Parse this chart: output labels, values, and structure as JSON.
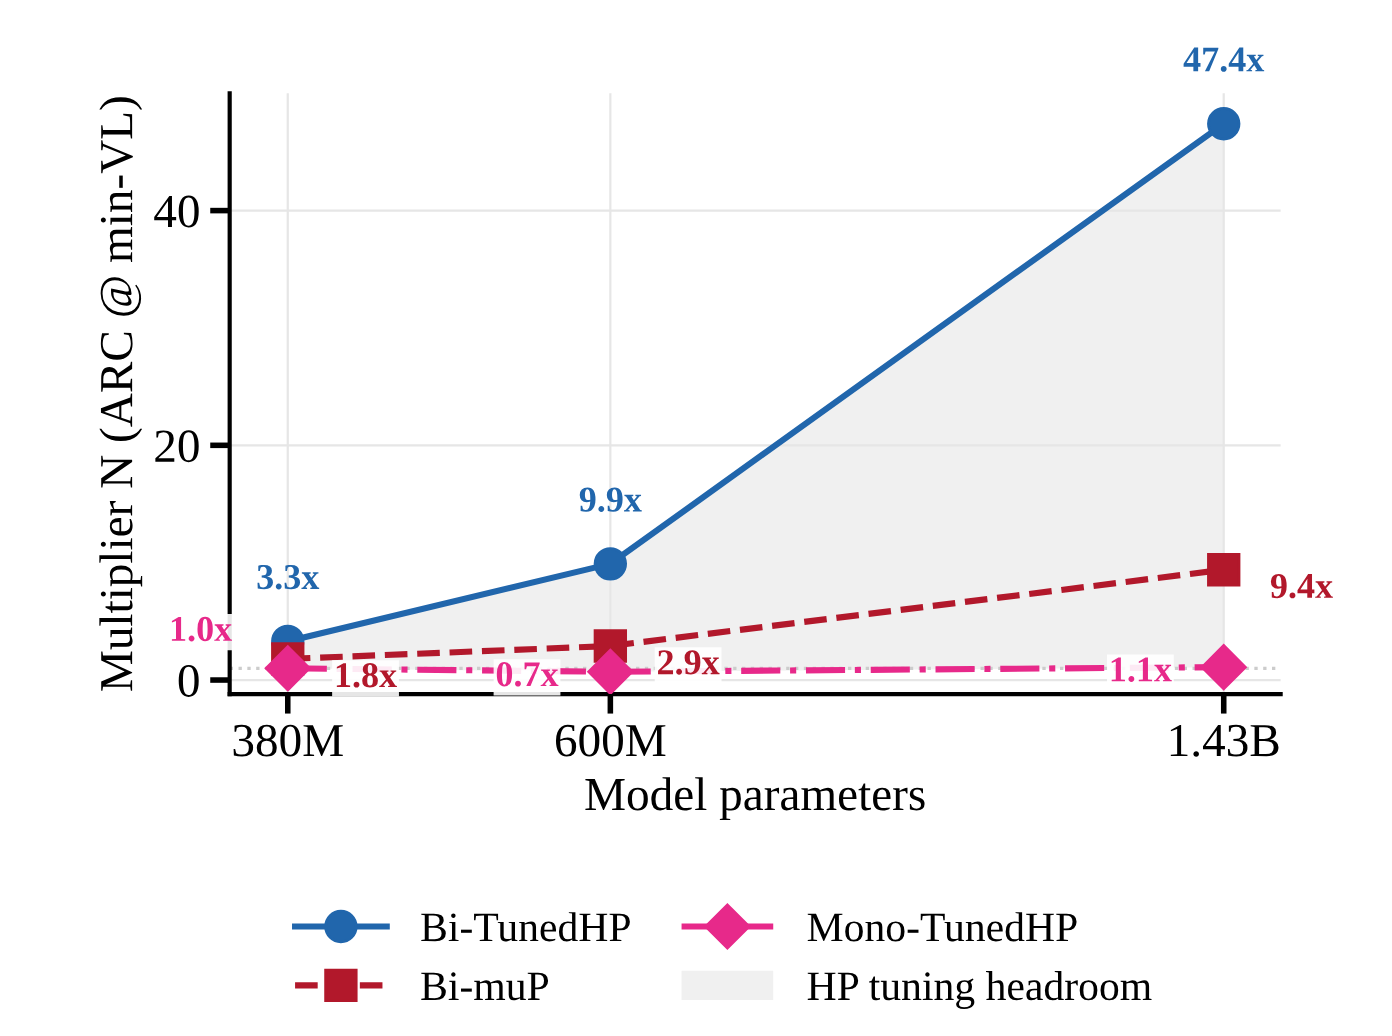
{
  "chart_data": {
    "type": "line",
    "xlabel": "Model parameters",
    "ylabel": "Multiplier N (ARC @ min-VL)",
    "x": [
      380000000,
      600000000,
      1430000000
    ],
    "log": "x",
    "xlim": [
      350000000,
      1550000000
    ],
    "xticks": [
      {
        "value": 380000000,
        "label": "380M"
      },
      {
        "value": 600000000,
        "label": "600M"
      },
      {
        "value": 1430000000,
        "label": "1.43B"
      }
    ],
    "ylim": [
      -1.2,
      50
    ],
    "yticks": [
      0,
      20,
      40
    ],
    "grid": true,
    "legend": "bottom",
    "series": [
      {
        "name": "Bi-TunedHP",
        "color": "#2166ac",
        "values": [
          3.3,
          9.9,
          47.4
        ],
        "marker": "circle",
        "line_style": "solid",
        "value_labels": [
          "3.3x",
          "9.9x",
          "47.4x"
        ]
      },
      {
        "name": "Bi-muP",
        "color": "#b2182b",
        "values": [
          1.8,
          2.9,
          9.4
        ],
        "marker": "square",
        "line_style": "dashed",
        "value_labels": [
          "1.8x",
          "2.9x",
          "9.4x"
        ]
      },
      {
        "name": "Mono-TunedHP",
        "color": "#e7298a",
        "values": [
          1.0,
          0.7,
          1.1
        ],
        "marker": "diamond",
        "line_style": "dashdot",
        "value_labels": [
          "1.0x",
          "0.7x",
          "1.1x"
        ]
      },
      {
        "name": "HP tuning headroom",
        "color": "#f0f0f0",
        "type": "area",
        "values": [
          null,
          null,
          null
        ],
        "lower": [
          1.0,
          0.7,
          1.1
        ],
        "upper": [
          3.3,
          9.9,
          47.4
        ]
      }
    ],
    "ref_lines": [
      {
        "axis": "y",
        "value": 1,
        "color": "#cccccc",
        "line_style": "dotted"
      }
    ]
  }
}
